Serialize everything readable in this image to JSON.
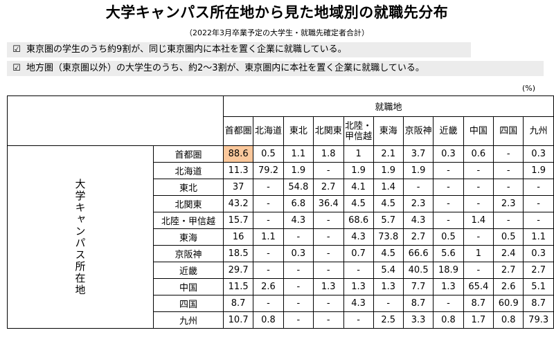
{
  "title": "大学キャンパス所在地から見た地域別の就職先分布",
  "subtitle": "（2022年3月卒業予定の大学生・就職先確定者合計）",
  "notes": [
    {
      "check": "☑",
      "text": "東京圏の学生のうち約9割が、同じ東京圏内に本社を置く企業に就職している。"
    },
    {
      "check": "☑",
      "text": "地方圏（東京圏以外）の大学生のうち、約2～3割が、東京圏内に本社を置く企業に就職している。"
    }
  ],
  "unit": "(%)",
  "table": {
    "column_group_label": "就職地",
    "row_group_label": "大学キャンパス所在地",
    "columns": [
      "首都圏",
      "北海道",
      "東北",
      "北関東",
      "北陸・甲信越",
      "東海",
      "京阪神",
      "近畿",
      "中国",
      "四国",
      "九州"
    ],
    "rows": [
      {
        "label": "首都圏",
        "values": [
          "88.6",
          "0.5",
          "1.1",
          "1.8",
          "1",
          "2.1",
          "3.7",
          "0.3",
          "0.6",
          "-",
          "0.3"
        ]
      },
      {
        "label": "北海道",
        "values": [
          "11.3",
          "79.2",
          "1.9",
          "-",
          "1.9",
          "1.9",
          "1.9",
          "-",
          "-",
          "-",
          "1.9"
        ]
      },
      {
        "label": "東北",
        "values": [
          "37",
          "-",
          "54.8",
          "2.7",
          "4.1",
          "1.4",
          "-",
          "-",
          "-",
          "-",
          "-"
        ]
      },
      {
        "label": "北関東",
        "values": [
          "43.2",
          "-",
          "6.8",
          "36.4",
          "4.5",
          "4.5",
          "2.3",
          "-",
          "-",
          "2.3",
          "-"
        ]
      },
      {
        "label": "北陸・甲信越",
        "values": [
          "15.7",
          "-",
          "4.3",
          "-",
          "68.6",
          "5.7",
          "4.3",
          "-",
          "1.4",
          "-",
          "-"
        ]
      },
      {
        "label": "東海",
        "values": [
          "16",
          "1.1",
          "-",
          "-",
          "4.3",
          "73.8",
          "2.7",
          "0.5",
          "-",
          "0.5",
          "1.1"
        ]
      },
      {
        "label": "京阪神",
        "values": [
          "18.5",
          "-",
          "0.3",
          "-",
          "0.7",
          "4.5",
          "66.6",
          "5.6",
          "1",
          "2.4",
          "0.3"
        ]
      },
      {
        "label": "近畿",
        "values": [
          "29.7",
          "-",
          "-",
          "-",
          "-",
          "5.4",
          "40.5",
          "18.9",
          "-",
          "2.7",
          "2.7"
        ]
      },
      {
        "label": "中国",
        "values": [
          "11.5",
          "2.6",
          "-",
          "1.3",
          "1.3",
          "1.3",
          "7.7",
          "1.3",
          "65.4",
          "2.6",
          "5.1"
        ]
      },
      {
        "label": "四国",
        "values": [
          "8.7",
          "-",
          "-",
          "-",
          "4.3",
          "-",
          "8.7",
          "-",
          "8.7",
          "60.9",
          "8.7"
        ]
      },
      {
        "label": "九州",
        "values": [
          "10.7",
          "0.8",
          "-",
          "-",
          "-",
          "2.5",
          "3.3",
          "0.8",
          "1.7",
          "0.8",
          "79.3"
        ]
      }
    ],
    "highlight": {
      "row": 0,
      "col": 0,
      "color": "#fbc89c"
    }
  }
}
